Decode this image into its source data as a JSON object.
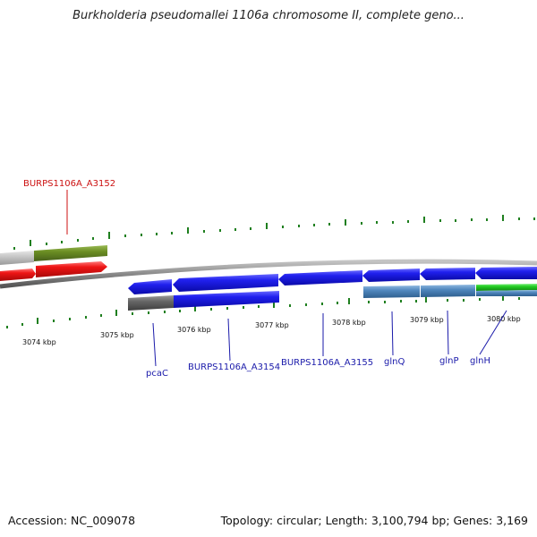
{
  "title": "Burkholderia pseudomallei 1106a chromosome II, complete geno...",
  "footer": {
    "accession": "Accession: NC_009078",
    "summary": "Topology: circular; Length: 3,100,794 bp; Genes: 3,169"
  },
  "colors": {
    "forward_gene": "#1a1ae6",
    "reverse_gene_red": "#e61010",
    "olive": "#6b8e23",
    "light_gray": "#c8c8c8",
    "steel_blue": "#4f87bd",
    "dark_gray": "#666666",
    "green": "#22cc22",
    "tick": "#1f7f1f",
    "backbone": "#8a8a8a",
    "label_blue": "#1a1aaa",
    "label_red": "#cc1111"
  },
  "kbp_labels": [
    "3074 kbp",
    "3075 kbp",
    "3076 kbp",
    "3077 kbp",
    "3078 kbp",
    "3079 kbp",
    "3080 kbp"
  ],
  "gene_labels": [
    {
      "name": "BURPS1106A_A3152",
      "color": "red"
    },
    {
      "name": "pcaC",
      "color": "blue"
    },
    {
      "name": "BURPS1106A_A3154",
      "color": "blue"
    },
    {
      "name": "BURPS1106A_A3155",
      "color": "blue"
    },
    {
      "name": "glnQ",
      "color": "blue"
    },
    {
      "name": "glnP",
      "color": "blue"
    },
    {
      "name": "glnH",
      "color": "blue"
    }
  ]
}
